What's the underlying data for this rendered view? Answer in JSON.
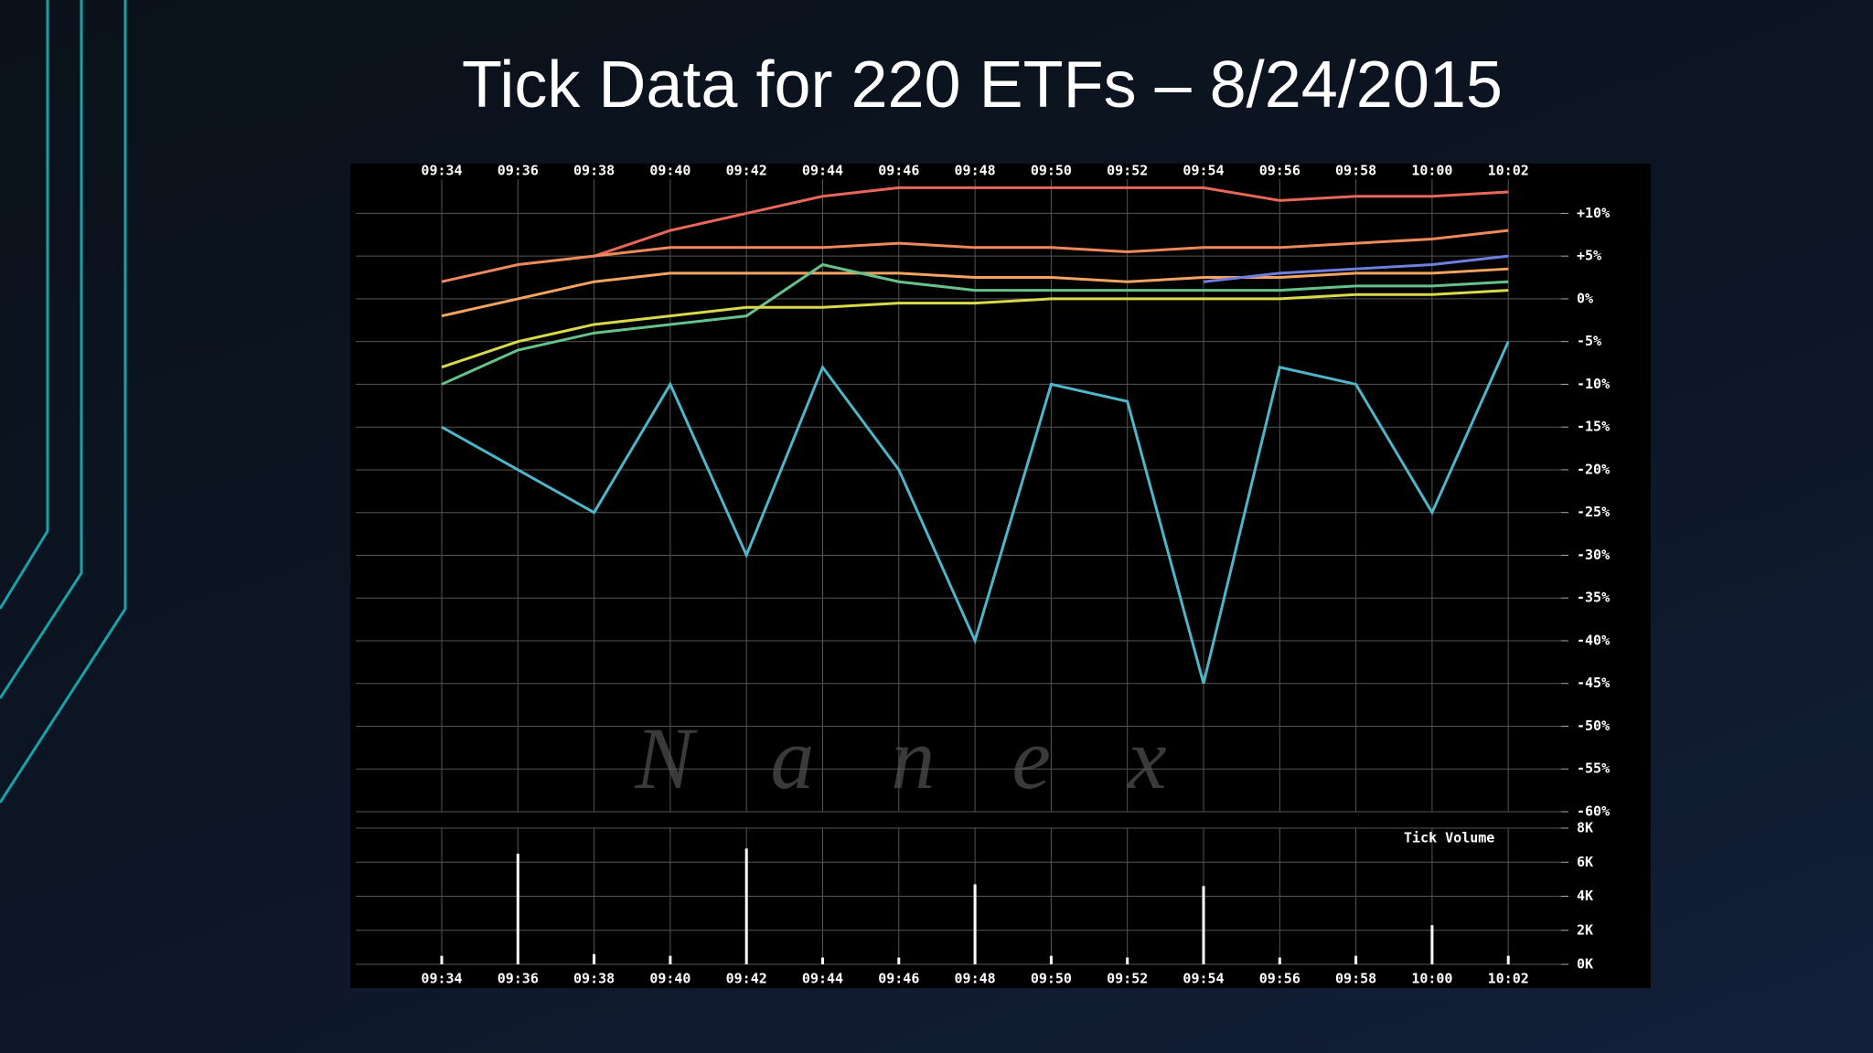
{
  "title": "Tick Data for 220 ETFs – 8/24/2015",
  "chart_data": [
    {
      "type": "line",
      "x": [
        "09:34",
        "09:36",
        "09:38",
        "09:40",
        "09:42",
        "09:44",
        "09:46",
        "09:48",
        "09:50",
        "09:52",
        "09:54",
        "09:56",
        "09:58",
        "10:00",
        "10:02"
      ],
      "ylim": [
        -60,
        14
      ],
      "yticks": [
        {
          "value": 10,
          "label": "+10%"
        },
        {
          "value": 5,
          "label": "+5%"
        },
        {
          "value": 0,
          "label": "0%"
        },
        {
          "value": -5,
          "label": "-5%"
        },
        {
          "value": -10,
          "label": "-10%"
        },
        {
          "value": -15,
          "label": "-15%"
        },
        {
          "value": -20,
          "label": "-20%"
        },
        {
          "value": -25,
          "label": "-25%"
        },
        {
          "value": -30,
          "label": "-30%"
        },
        {
          "value": -35,
          "label": "-35%"
        },
        {
          "value": -40,
          "label": "-40%"
        },
        {
          "value": -45,
          "label": "-45%"
        },
        {
          "value": -50,
          "label": "-50%"
        },
        {
          "value": -55,
          "label": "-55%"
        },
        {
          "value": -60,
          "label": "-60%"
        }
      ],
      "grid": true,
      "watermark": "N a n e x",
      "series": [
        {
          "color": "#e8665a",
          "values": [
            null,
            null,
            5,
            8,
            10,
            12,
            13,
            13,
            13,
            13,
            13,
            11.5,
            12,
            12,
            12.5
          ]
        },
        {
          "color": "#f08a5d",
          "values": [
            2,
            4,
            5,
            6,
            6,
            6,
            6.5,
            6,
            6,
            5.5,
            6,
            6,
            6.5,
            7,
            8
          ]
        },
        {
          "color": "#f4a460",
          "values": [
            -2,
            0,
            2,
            3,
            3,
            3,
            3,
            2.5,
            2.5,
            2,
            2.5,
            2.5,
            3,
            3,
            3.5
          ]
        },
        {
          "color": "#66c28a",
          "values": [
            -10,
            -6,
            -4,
            -3,
            -2,
            4,
            2,
            1,
            1,
            1,
            1,
            1,
            1.5,
            1.5,
            2
          ]
        },
        {
          "color": "#d9d94a",
          "values": [
            -8,
            -5,
            -3,
            -2,
            -1,
            -1,
            -0.5,
            -0.5,
            0,
            0,
            0,
            0,
            0.5,
            0.5,
            1
          ]
        },
        {
          "color": "#6f7fe0",
          "values": [
            null,
            null,
            null,
            null,
            null,
            null,
            null,
            null,
            null,
            null,
            2,
            3,
            3.5,
            4,
            5
          ]
        },
        {
          "color": "#4fb5c9",
          "values": [
            -15,
            -20,
            -25,
            -10,
            -30,
            -8,
            -20,
            -40,
            -10,
            -12,
            -45,
            -8,
            -10,
            -25,
            -5
          ]
        }
      ]
    },
    {
      "type": "bar",
      "label": "Tick Volume",
      "x": [
        "09:34",
        "09:36",
        "09:38",
        "09:40",
        "09:42",
        "09:44",
        "09:46",
        "09:48",
        "09:50",
        "09:52",
        "09:54",
        "09:56",
        "09:58",
        "10:00",
        "10:02"
      ],
      "values": [
        500,
        6500,
        600,
        500,
        6800,
        400,
        400,
        4700,
        500,
        400,
        4600,
        400,
        500,
        2300,
        500
      ],
      "color": "#ffffff",
      "ylim": [
        0,
        8000
      ],
      "yticks": [
        {
          "value": 0,
          "label": "0K"
        },
        {
          "value": 2000,
          "label": "2K"
        },
        {
          "value": 4000,
          "label": "4K"
        },
        {
          "value": 6000,
          "label": "6K"
        },
        {
          "value": 8000,
          "label": "8K"
        }
      ],
      "grid": true
    }
  ]
}
